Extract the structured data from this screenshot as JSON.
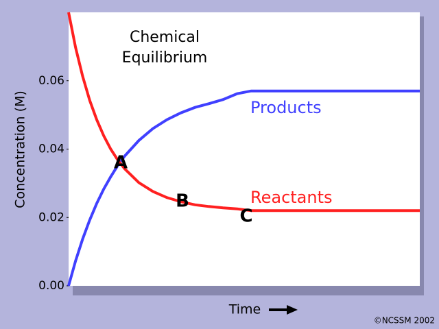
{
  "chart_data": {
    "type": "line",
    "title": [
      "Chemical",
      "Equilibrium"
    ],
    "y_label": "Concentration (M)",
    "x_label": "Time",
    "credit": "©NCSSM 2002",
    "annotations": [
      "A",
      "B",
      "C"
    ],
    "x": [
      0,
      2,
      4,
      6,
      8,
      10,
      12,
      14,
      16,
      20,
      24,
      28,
      32,
      36,
      40,
      44,
      48,
      52,
      100
    ],
    "xlim": [
      0,
      100
    ],
    "ylim": [
      0,
      0.08
    ],
    "yticks": [
      {
        "value": 0,
        "label": "0.00"
      },
      {
        "value": 0.02,
        "label": "0.02"
      },
      {
        "value": 0.04,
        "label": "0.04"
      },
      {
        "value": 0.06,
        "label": "0.06"
      }
    ],
    "series": [
      {
        "name": "Products",
        "color": "#4040ff",
        "values": [
          0,
          0.0073,
          0.0137,
          0.0192,
          0.0241,
          0.0283,
          0.0319,
          0.0352,
          0.038,
          0.0425,
          0.046,
          0.0486,
          0.0506,
          0.0522,
          0.0533,
          0.0545,
          0.0562,
          0.057,
          0.057
        ]
      },
      {
        "name": "Reactants",
        "color": "#ff2020",
        "values": [
          0.08,
          0.0697,
          0.0613,
          0.0543,
          0.0486,
          0.0439,
          0.04,
          0.0368,
          0.0342,
          0.0302,
          0.0276,
          0.0258,
          0.0246,
          0.0237,
          0.0232,
          0.0228,
          0.0225,
          0.022,
          0.022
        ]
      }
    ]
  }
}
